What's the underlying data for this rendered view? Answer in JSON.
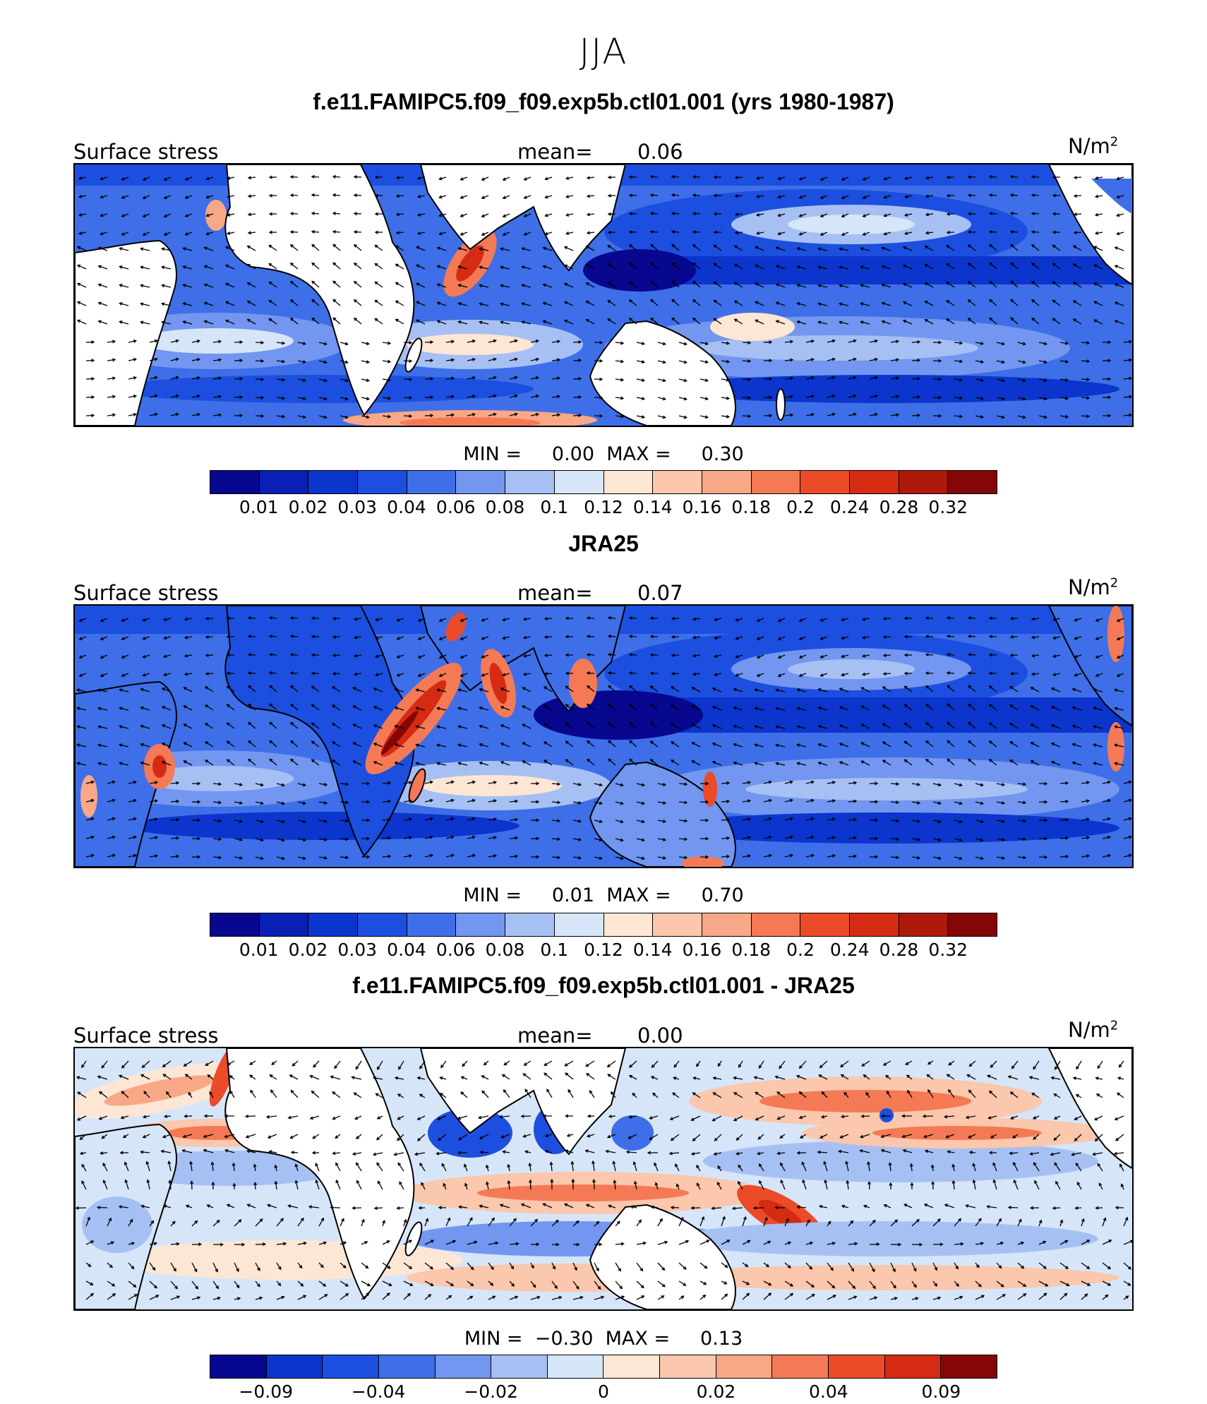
{
  "title": "JJA",
  "panels": [
    {
      "id": "model",
      "title": "f.e11.FAMIPC5.f09_f09.exp5b.ctl01.001 (yrs 1980-1987)",
      "variable": "Surface  stress",
      "mean_label": "mean=",
      "mean_value": "0.06",
      "units": "N/m",
      "units_exp": "2",
      "min_label": "MIN =",
      "min_value": "0.00",
      "max_label": "MAX =",
      "max_value": "0.30",
      "tick_labels": [
        "0.01",
        "0.02",
        "0.03",
        "0.04",
        "0.06",
        "0.08",
        "0.1",
        "0.12",
        "0.14",
        "0.16",
        "0.18",
        "0.2",
        "0.24",
        "0.28",
        "0.32"
      ],
      "colors": [
        "#08078f",
        "#0a1fb3",
        "#0b35cc",
        "#1c4fdf",
        "#3e6fe8",
        "#7396f0",
        "#a7c0f4",
        "#d6e6f8",
        "#fde6d4",
        "#fbc7ad",
        "#f8a886",
        "#f47a55",
        "#ec4b2a",
        "#d42b12",
        "#ad1a0c",
        "#840606"
      ]
    },
    {
      "id": "obs",
      "title": "JRA25",
      "variable": "Surface  stress",
      "mean_label": "mean=",
      "mean_value": "0.07",
      "units": "N/m",
      "units_exp": "2",
      "min_label": "MIN =",
      "min_value": "0.01",
      "max_label": "MAX =",
      "max_value": "0.70",
      "tick_labels": [
        "0.01",
        "0.02",
        "0.03",
        "0.04",
        "0.06",
        "0.08",
        "0.1",
        "0.12",
        "0.14",
        "0.16",
        "0.18",
        "0.2",
        "0.24",
        "0.28",
        "0.32"
      ],
      "colors": [
        "#08078f",
        "#0a1fb3",
        "#0b35cc",
        "#1c4fdf",
        "#3e6fe8",
        "#7396f0",
        "#a7c0f4",
        "#d6e6f8",
        "#fde6d4",
        "#fbc7ad",
        "#f8a886",
        "#f47a55",
        "#ec4b2a",
        "#d42b12",
        "#ad1a0c",
        "#840606"
      ]
    },
    {
      "id": "diff",
      "title": "f.e11.FAMIPC5.f09_f09.exp5b.ctl01.001 - JRA25",
      "variable": "Surface  stress",
      "mean_label": "mean=",
      "mean_value": "0.00",
      "units": "N/m",
      "units_exp": "2",
      "min_label": "MIN =",
      "min_value": "−0.30",
      "max_label": "MAX =",
      "max_value": "0.13",
      "tick_labels": [
        "−0.09",
        "",
        "−0.04",
        "",
        "−0.02",
        "",
        "0",
        "",
        "0.02",
        "",
        "0.04",
        "",
        "0.09"
      ],
      "colors": [
        "#08078f",
        "#0b35cc",
        "#1c4fdf",
        "#3e6fe8",
        "#7396f0",
        "#a7c0f4",
        "#d6e6f8",
        "#fde6d4",
        "#fbc7ad",
        "#f8a886",
        "#f47a55",
        "#ec4b2a",
        "#d42b12",
        "#840606"
      ]
    }
  ]
}
